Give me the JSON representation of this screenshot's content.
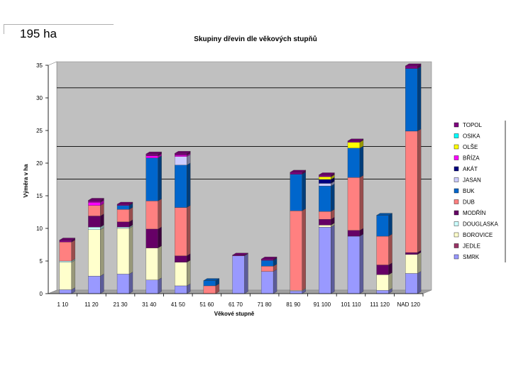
{
  "header": {
    "area_label": "195 ha"
  },
  "chart_data": {
    "type": "bar",
    "stacked": true,
    "three_d": true,
    "title": "Skupiny dřevin dle věkových stupňů",
    "xlabel": "Věkové stupně",
    "ylabel": "Výměra v ha",
    "ylim": [
      0,
      35
    ],
    "yticks": [
      0,
      5,
      10,
      15,
      20,
      25,
      30,
      35
    ],
    "gridlines": [
      17,
      22,
      31
    ],
    "legend_position": "right",
    "categories": [
      "1 10",
      "11 20",
      "21 30",
      "31 40",
      "41 50",
      "51 60",
      "61 70",
      "71 80",
      "81 90",
      "91 100",
      "101 110",
      "111 120",
      "NAD 120"
    ],
    "series": [
      {
        "name": "SMRK",
        "color": "#9999ff",
        "values": [
          0.6,
          2.7,
          3.0,
          2.1,
          1.2,
          0,
          5.8,
          3.4,
          0.4,
          10.2,
          8.8,
          0.5,
          3.1
        ]
      },
      {
        "name": "JEDLE",
        "color": "#993366",
        "values": [
          0,
          0,
          0,
          0,
          0,
          0,
          0,
          0,
          0,
          0,
          0,
          0,
          0
        ]
      },
      {
        "name": "BOROVICE",
        "color": "#ffffcc",
        "values": [
          4.2,
          7.1,
          7.0,
          4.9,
          3.6,
          0,
          0,
          0,
          0.1,
          0.3,
          0,
          2.4,
          2.9
        ]
      },
      {
        "name": "DOUGLASKA",
        "color": "#ccffff",
        "values": [
          0.2,
          0.4,
          0.2,
          0,
          0,
          0,
          0,
          0,
          0,
          0,
          0,
          0,
          0
        ]
      },
      {
        "name": "MODŘÍN",
        "color": "#660066",
        "values": [
          0,
          1.7,
          0.8,
          2.9,
          1.0,
          0,
          0,
          0,
          0,
          0.9,
          0.9,
          1.5,
          0.3
        ]
      },
      {
        "name": "DUB",
        "color": "#ff8080",
        "values": [
          2.9,
          1.6,
          1.9,
          4.3,
          7.4,
          1.2,
          0,
          0.8,
          12.2,
          1.2,
          8.1,
          4.4,
          18.6
        ]
      },
      {
        "name": "BUK",
        "color": "#0066cc",
        "values": [
          0,
          0,
          0.6,
          6.6,
          6.5,
          0.8,
          0,
          0.9,
          5.6,
          3.9,
          4.5,
          3.2,
          9.6
        ]
      },
      {
        "name": "JASAN",
        "color": "#ccccff",
        "values": [
          0,
          0,
          0,
          0,
          1.3,
          0,
          0,
          0,
          0,
          0.4,
          0,
          0,
          0
        ]
      },
      {
        "name": "AKÁT",
        "color": "#000080",
        "values": [
          0,
          0,
          0,
          0,
          0,
          0,
          0,
          0,
          0,
          0.6,
          0,
          0,
          0
        ]
      },
      {
        "name": "BŘÍZA",
        "color": "#ff00ff",
        "values": [
          0,
          0.5,
          0,
          0.3,
          0.2,
          0,
          0,
          0,
          0,
          0,
          0,
          0,
          0
        ]
      },
      {
        "name": "OLŠE",
        "color": "#ffff00",
        "values": [
          0,
          0,
          0,
          0,
          0,
          0,
          0,
          0,
          0,
          0.4,
          0.9,
          0,
          0
        ]
      },
      {
        "name": "OSIKA",
        "color": "#00ffff",
        "values": [
          0,
          0,
          0,
          0,
          0,
          0,
          0,
          0,
          0,
          0,
          0,
          0,
          0
        ]
      },
      {
        "name": "TOPOL",
        "color": "#800080",
        "values": [
          0.3,
          0.3,
          0.2,
          0.3,
          0.3,
          0,
          0.1,
          0.2,
          0.3,
          0.3,
          0.2,
          0,
          0.4
        ]
      }
    ]
  }
}
